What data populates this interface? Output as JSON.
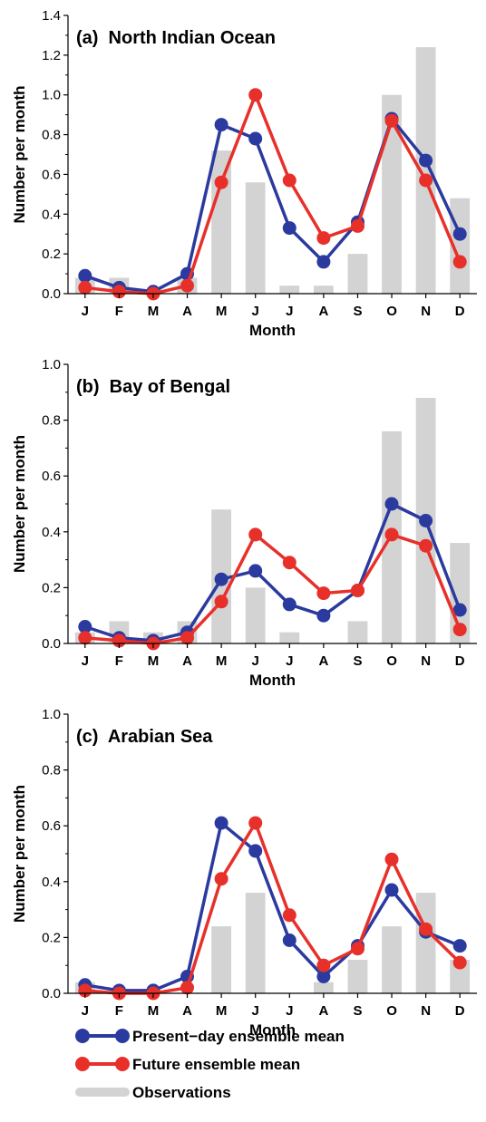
{
  "chart_data": [
    {
      "type": "bar",
      "title": "(a)  North Indian Ocean",
      "xlabel": "Month",
      "ylabel": "Number per month",
      "categories": [
        "J",
        "F",
        "M",
        "A",
        "M",
        "J",
        "J",
        "A",
        "S",
        "O",
        "N",
        "D"
      ],
      "ylim": [
        0,
        1.4
      ],
      "yticks": [
        "0.0",
        "0.2",
        "0.4",
        "0.6",
        "0.8",
        "1.0",
        "1.2",
        "1.4"
      ],
      "observations": [
        0.08,
        0.08,
        0.02,
        0.08,
        0.72,
        0.56,
        0.04,
        0.04,
        0.2,
        1.0,
        1.24,
        0.48
      ],
      "series": [
        {
          "name": "Present−day ensemble mean",
          "color": "#2b3a9e",
          "values": [
            0.09,
            0.03,
            0.01,
            0.1,
            0.85,
            0.78,
            0.33,
            0.16,
            0.36,
            0.88,
            0.67,
            0.3
          ]
        },
        {
          "name": "Future ensemble mean",
          "color": "#e8302a",
          "values": [
            0.03,
            0.01,
            0.0,
            0.04,
            0.56,
            1.0,
            0.57,
            0.28,
            0.34,
            0.87,
            0.57,
            0.16
          ]
        }
      ]
    },
    {
      "type": "bar",
      "title": "(b)  Bay of Bengal",
      "xlabel": "Month",
      "ylabel": "Number per month",
      "categories": [
        "J",
        "F",
        "M",
        "A",
        "M",
        "J",
        "J",
        "A",
        "S",
        "O",
        "N",
        "D"
      ],
      "ylim": [
        0,
        1.0
      ],
      "yticks": [
        "0.0",
        "0.2",
        "0.4",
        "0.6",
        "0.8",
        "1.0"
      ],
      "observations": [
        0.04,
        0.08,
        0.04,
        0.08,
        0.48,
        0.2,
        0.04,
        0.0,
        0.08,
        0.76,
        0.88,
        0.36
      ],
      "series": [
        {
          "name": "Present−day ensemble mean",
          "color": "#2b3a9e",
          "values": [
            0.06,
            0.02,
            0.01,
            0.04,
            0.23,
            0.26,
            0.14,
            0.1,
            0.19,
            0.5,
            0.44,
            0.12
          ]
        },
        {
          "name": "Future ensemble mean",
          "color": "#e8302a",
          "values": [
            0.02,
            0.01,
            0.0,
            0.02,
            0.15,
            0.39,
            0.29,
            0.18,
            0.19,
            0.39,
            0.35,
            0.05
          ]
        }
      ]
    },
    {
      "type": "bar",
      "title": "(c)  Arabian Sea",
      "xlabel": "Month",
      "ylabel": "Number per month",
      "categories": [
        "J",
        "F",
        "M",
        "A",
        "M",
        "J",
        "J",
        "A",
        "S",
        "O",
        "N",
        "D"
      ],
      "ylim": [
        0,
        1.0
      ],
      "yticks": [
        "0.0",
        "0.2",
        "0.4",
        "0.6",
        "0.8",
        "1.0"
      ],
      "observations": [
        0.04,
        0.0,
        0.0,
        0.0,
        0.24,
        0.36,
        0.0,
        0.04,
        0.12,
        0.24,
        0.36,
        0.12
      ],
      "series": [
        {
          "name": "Present−day ensemble mean",
          "color": "#2b3a9e",
          "values": [
            0.03,
            0.01,
            0.01,
            0.06,
            0.61,
            0.51,
            0.19,
            0.06,
            0.17,
            0.37,
            0.22,
            0.17
          ]
        },
        {
          "name": "Future ensemble mean",
          "color": "#e8302a",
          "values": [
            0.01,
            0.0,
            0.0,
            0.02,
            0.41,
            0.61,
            0.28,
            0.1,
            0.16,
            0.48,
            0.23,
            0.11
          ]
        }
      ]
    }
  ],
  "legend": {
    "placement": "bottom-left",
    "items": [
      {
        "label": "Present−day ensemble mean",
        "color": "#2b3a9e",
        "kind": "line-marker"
      },
      {
        "label": "Future ensemble mean",
        "color": "#e8302a",
        "kind": "line-marker"
      },
      {
        "label": "Observations",
        "color": "#d3d3d3",
        "kind": "bar"
      }
    ]
  }
}
